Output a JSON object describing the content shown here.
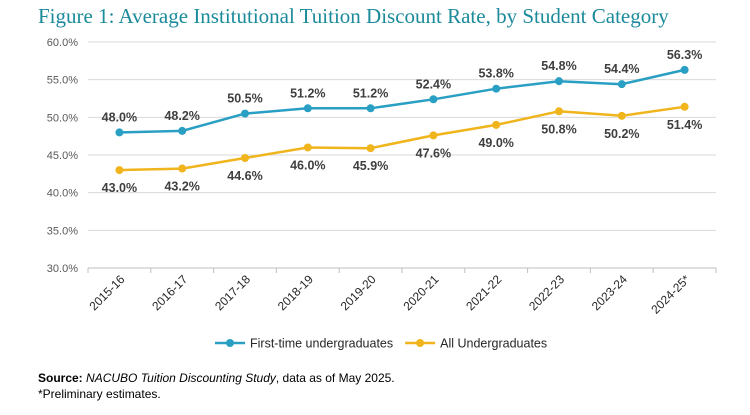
{
  "title": "Figure 1: Average Institutional Tuition Discount Rate, by Student Category",
  "chart_data": {
    "type": "line",
    "title": "Figure 1: Average Institutional Tuition Discount Rate, by Student Category",
    "xlabel": "",
    "ylabel": "",
    "categories": [
      "2015-16",
      "2016-17",
      "2017-18",
      "2018-19",
      "2019-20",
      "2020-21",
      "2021-22",
      "2022-23",
      "2023-24",
      "2024-25*"
    ],
    "series": [
      {
        "name": "First-time undergraduates",
        "color": "#2a9fc4",
        "values": [
          48.0,
          48.2,
          50.5,
          51.2,
          51.2,
          52.4,
          53.8,
          54.8,
          54.4,
          56.3
        ],
        "labels": [
          "48.0%",
          "48.2%",
          "50.5%",
          "51.2%",
          "51.2%",
          "52.4%",
          "53.8%",
          "54.8%",
          "54.4%",
          "56.3%"
        ],
        "label_position": "above"
      },
      {
        "name": "All Undergraduates",
        "color": "#f0b41c",
        "values": [
          43.0,
          43.2,
          44.6,
          46.0,
          45.9,
          47.6,
          49.0,
          50.8,
          50.2,
          51.4
        ],
        "labels": [
          "43.0%",
          "43.2%",
          "44.6%",
          "46.0%",
          "45.9%",
          "47.6%",
          "49.0%",
          "50.8%",
          "50.2%",
          "51.4%"
        ],
        "label_position": "below"
      }
    ],
    "ylim": [
      30,
      60
    ],
    "yticks": [
      30,
      35,
      40,
      45,
      50,
      55,
      60
    ],
    "ytick_labels": [
      "30.0%",
      "35.0%",
      "40.0%",
      "45.0%",
      "50.0%",
      "55.0%",
      "60.0%"
    ],
    "grid": true,
    "legend_position": "bottom"
  },
  "source_label": "Source:",
  "source_study": "NACUBO Tuition Discounting Study",
  "source_rest": ", data as of May 2025.",
  "note": "*Preliminary estimates."
}
